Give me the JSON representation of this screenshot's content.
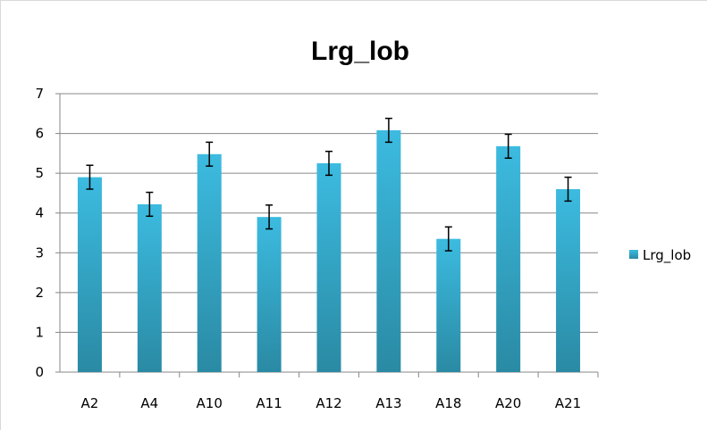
{
  "chart_data": {
    "type": "bar",
    "title": "Lrg_lob",
    "categories": [
      "A2",
      "A4",
      "A10",
      "A11",
      "A12",
      "A13",
      "A18",
      "A20",
      "A21"
    ],
    "series": [
      {
        "name": "Lrg_lob",
        "values": [
          4.9,
          4.22,
          5.48,
          3.9,
          5.25,
          6.08,
          3.35,
          5.68,
          4.6
        ],
        "errors": [
          0.3,
          0.3,
          0.3,
          0.3,
          0.3,
          0.3,
          0.3,
          0.3,
          0.3
        ]
      }
    ],
    "yticks": [
      "0",
      "1",
      "2",
      "3",
      "4",
      "5",
      "6",
      "7"
    ],
    "ylim": [
      0,
      7
    ],
    "grid": true,
    "legend_position": "right",
    "colors": {
      "bar_top": "#3cbbe0",
      "bar_bottom": "#2a8aa4",
      "grid": "#878787",
      "axis": "#878787",
      "error_bar": "#000000"
    }
  }
}
